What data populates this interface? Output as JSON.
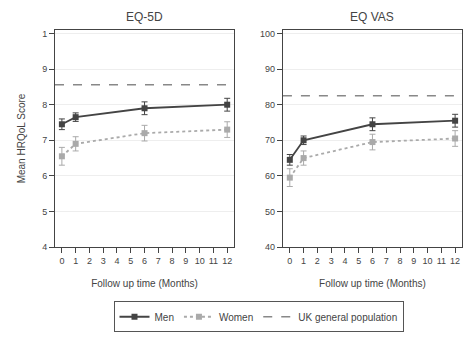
{
  "chart_data": [
    {
      "type": "line",
      "title": "EQ-5D",
      "xlabel": "Follow up time (Months)",
      "ylabel": "Mean HRQoL Score",
      "x": [
        0,
        1,
        6,
        12
      ],
      "xlim": [
        -0.5,
        12.5
      ],
      "xticks": [
        0,
        1,
        2,
        3,
        4,
        5,
        6,
        7,
        8,
        9,
        10,
        11,
        12
      ],
      "ylim": [
        0.4,
        1.01
      ],
      "yticks": [
        {
          "value": 0.4,
          "label": "4"
        },
        {
          "value": 0.5,
          "label": "5"
        },
        {
          "value": 0.6,
          "label": "6"
        },
        {
          "value": 0.7,
          "label": "7"
        },
        {
          "value": 0.8,
          "label": "8"
        },
        {
          "value": 0.9,
          "label": "9"
        },
        {
          "value": 1.0,
          "label": "1"
        }
      ],
      "grid": "y",
      "legend": "bottom",
      "series": [
        {
          "name": "Men",
          "color": "#444444",
          "line_style": "solid",
          "marker": "square",
          "values": [
            0.745,
            0.765,
            0.79,
            0.8
          ],
          "error": [
            0.015,
            0.012,
            0.018,
            0.018
          ]
        },
        {
          "name": "Women",
          "color": "#aaaaaa",
          "line_style": "dotted",
          "marker": "square",
          "values": [
            0.655,
            0.69,
            0.72,
            0.73
          ],
          "error": [
            0.025,
            0.02,
            0.022,
            0.022
          ]
        },
        {
          "name": "UK general population",
          "type": "hline",
          "color": "#888888",
          "line_style": "dashed",
          "value": 0.856
        }
      ]
    },
    {
      "type": "line",
      "title": "EQ VAS",
      "xlabel": "Follow up time (Months)",
      "x": [
        0,
        1,
        6,
        12
      ],
      "xlim": [
        -0.5,
        12.5
      ],
      "xticks": [
        0,
        1,
        2,
        3,
        4,
        5,
        6,
        7,
        8,
        9,
        10,
        11,
        12
      ],
      "ylim": [
        40,
        101
      ],
      "yticks": [
        40,
        50,
        60,
        70,
        80,
        90,
        100
      ],
      "grid": "y",
      "series": [
        {
          "name": "Men",
          "color": "#444444",
          "line_style": "solid",
          "marker": "square",
          "values": [
            64.5,
            70.0,
            74.5,
            75.5
          ],
          "error": [
            1.5,
            1.2,
            1.8,
            1.8
          ]
        },
        {
          "name": "Women",
          "color": "#aaaaaa",
          "line_style": "dotted",
          "marker": "square",
          "values": [
            59.5,
            65.0,
            69.5,
            70.5
          ],
          "error": [
            2.5,
            2.0,
            2.2,
            2.2
          ]
        },
        {
          "name": "UK general population",
          "type": "hline",
          "color": "#888888",
          "line_style": "dashed",
          "value": 82.5
        }
      ]
    }
  ]
}
